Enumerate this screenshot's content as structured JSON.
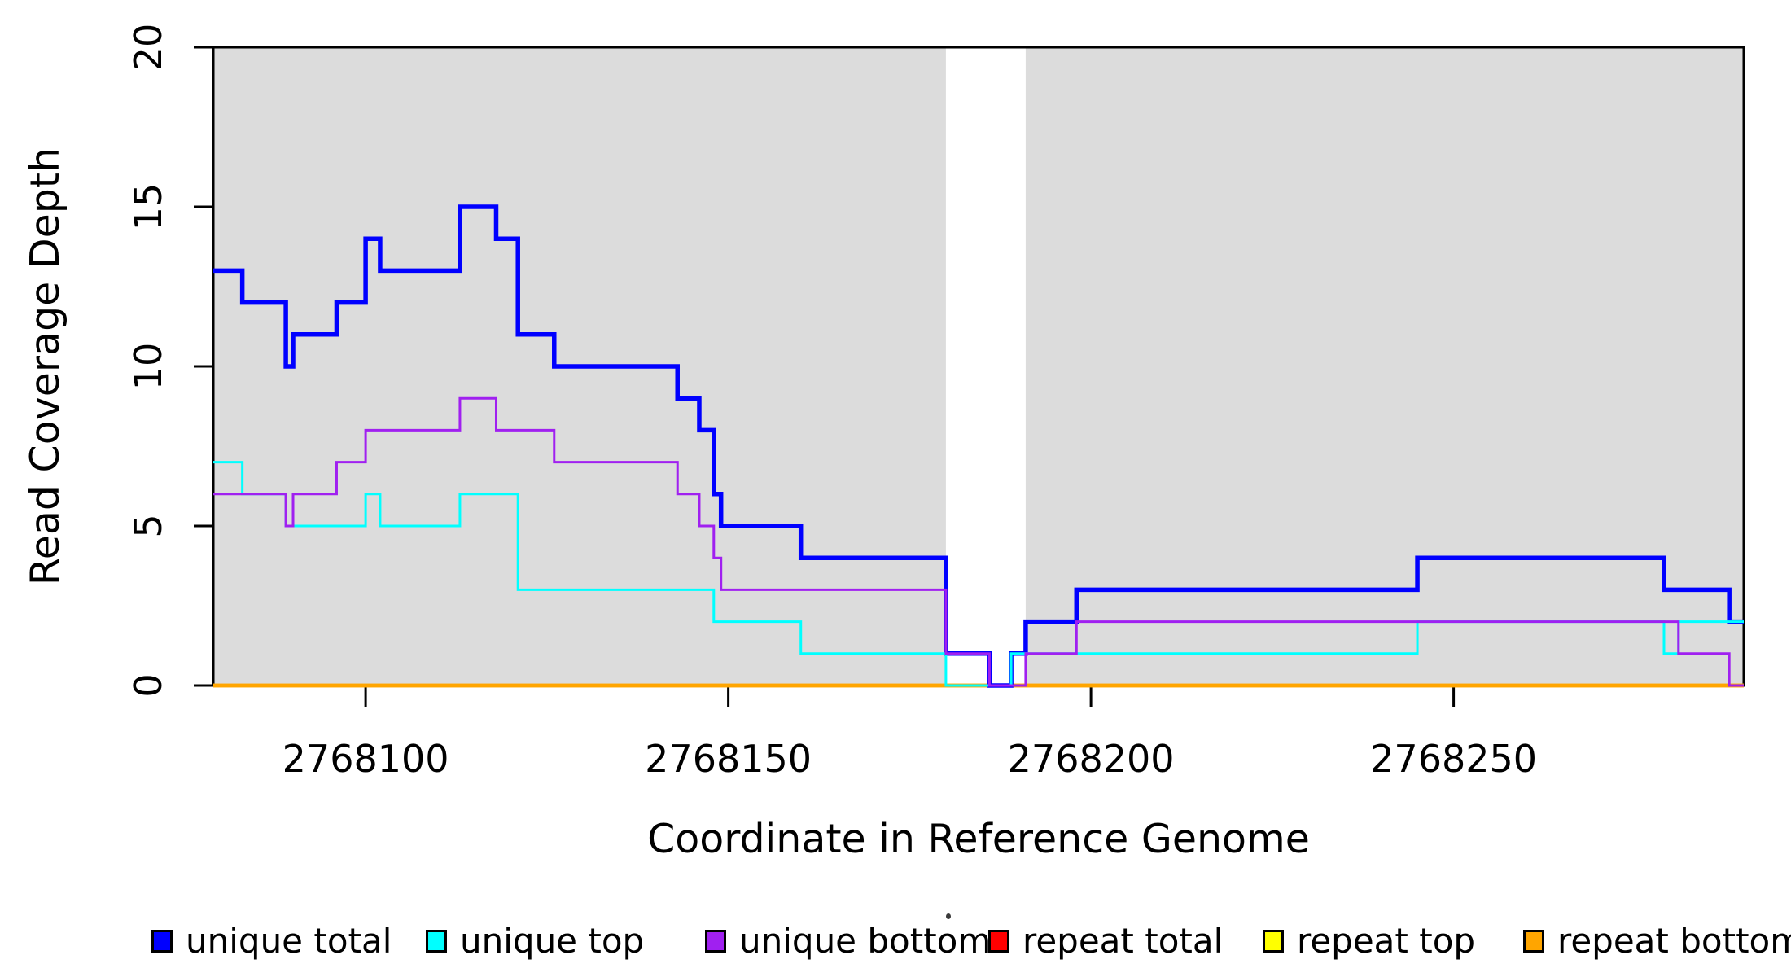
{
  "figure": {
    "background": "#ffffff",
    "band_color": "#dcdcdc",
    "axis_color": "#000000"
  },
  "chart_data": {
    "type": "line",
    "subtype": "step-coverage-plot",
    "title": "",
    "xlabel": "Coordinate in Reference Genome",
    "ylabel": "Read Coverage Depth",
    "xlim": [
      2768079,
      2768290
    ],
    "ylim": [
      0,
      20
    ],
    "xticks": [
      2768100,
      2768150,
      2768200,
      2768250
    ],
    "yticks": [
      0,
      5,
      10,
      15,
      20
    ],
    "grid": false,
    "legend_position": "bottom-horizontal",
    "shaded_regions": [
      {
        "x0": 2768079,
        "x1": 2768180,
        "color": "#dcdcdc"
      },
      {
        "x0": 2768191,
        "x1": 2768290,
        "color": "#dcdcdc"
      }
    ],
    "x_end": 2768290,
    "series": [
      {
        "name": "repeat total",
        "color": "#ff0000",
        "width": 4.5,
        "steps": [
          [
            2768079,
            0
          ]
        ]
      },
      {
        "name": "repeat top",
        "color": "#ffff00",
        "width": 4.5,
        "steps": [
          [
            2768079,
            0
          ]
        ]
      },
      {
        "name": "repeat bottom",
        "color": "#ffa500",
        "width": 4.5,
        "steps": [
          [
            2768079,
            0
          ]
        ]
      },
      {
        "name": "unique total",
        "color": "#0000ff",
        "width": 5.5,
        "steps": [
          [
            2768079,
            13
          ],
          [
            2768083,
            12
          ],
          [
            2768089,
            10
          ],
          [
            2768090,
            11
          ],
          [
            2768096,
            12
          ],
          [
            2768100,
            14
          ],
          [
            2768102,
            13
          ],
          [
            2768113,
            15
          ],
          [
            2768118,
            14
          ],
          [
            2768121,
            11
          ],
          [
            2768126,
            10
          ],
          [
            2768143,
            9
          ],
          [
            2768146,
            8
          ],
          [
            2768148,
            6
          ],
          [
            2768149,
            5
          ],
          [
            2768160,
            4
          ],
          [
            2768180,
            1
          ],
          [
            2768186,
            0
          ],
          [
            2768189,
            1
          ],
          [
            2768191,
            2
          ],
          [
            2768198,
            3
          ],
          [
            2768245,
            4
          ],
          [
            2768279,
            3
          ],
          [
            2768288,
            2
          ]
        ]
      },
      {
        "name": "unique top",
        "color": "#00ffff",
        "width": 3,
        "steps": [
          [
            2768079,
            7
          ],
          [
            2768083,
            6
          ],
          [
            2768089,
            5
          ],
          [
            2768100,
            6
          ],
          [
            2768102,
            5
          ],
          [
            2768113,
            6
          ],
          [
            2768121,
            3
          ],
          [
            2768148,
            2
          ],
          [
            2768160,
            1
          ],
          [
            2768180,
            0
          ],
          [
            2768189,
            1
          ],
          [
            2768245,
            2
          ],
          [
            2768279,
            1
          ],
          [
            2768281,
            2
          ]
        ]
      },
      {
        "name": "unique bottom",
        "color": "#a020f0",
        "width": 3,
        "steps": [
          [
            2768079,
            6
          ],
          [
            2768089,
            5
          ],
          [
            2768090,
            6
          ],
          [
            2768096,
            7
          ],
          [
            2768100,
            8
          ],
          [
            2768113,
            9
          ],
          [
            2768118,
            8
          ],
          [
            2768126,
            7
          ],
          [
            2768143,
            6
          ],
          [
            2768146,
            5
          ],
          [
            2768148,
            4
          ],
          [
            2768149,
            3
          ],
          [
            2768180,
            1
          ],
          [
            2768186,
            0
          ],
          [
            2768191,
            1
          ],
          [
            2768198,
            2
          ],
          [
            2768281,
            1
          ],
          [
            2768288,
            0
          ]
        ]
      }
    ],
    "legend": {
      "entries": [
        {
          "label": "unique total",
          "color": "#0000ff"
        },
        {
          "label": "unique top",
          "color": "#00ffff"
        },
        {
          "label": "unique bottom",
          "color": "#a020f0"
        },
        {
          "label": "repeat total",
          "color": "#ff0000"
        },
        {
          "label": "repeat top",
          "color": "#ffff00"
        },
        {
          "label": "repeat bottom",
          "color": "#ffa500"
        }
      ]
    }
  }
}
